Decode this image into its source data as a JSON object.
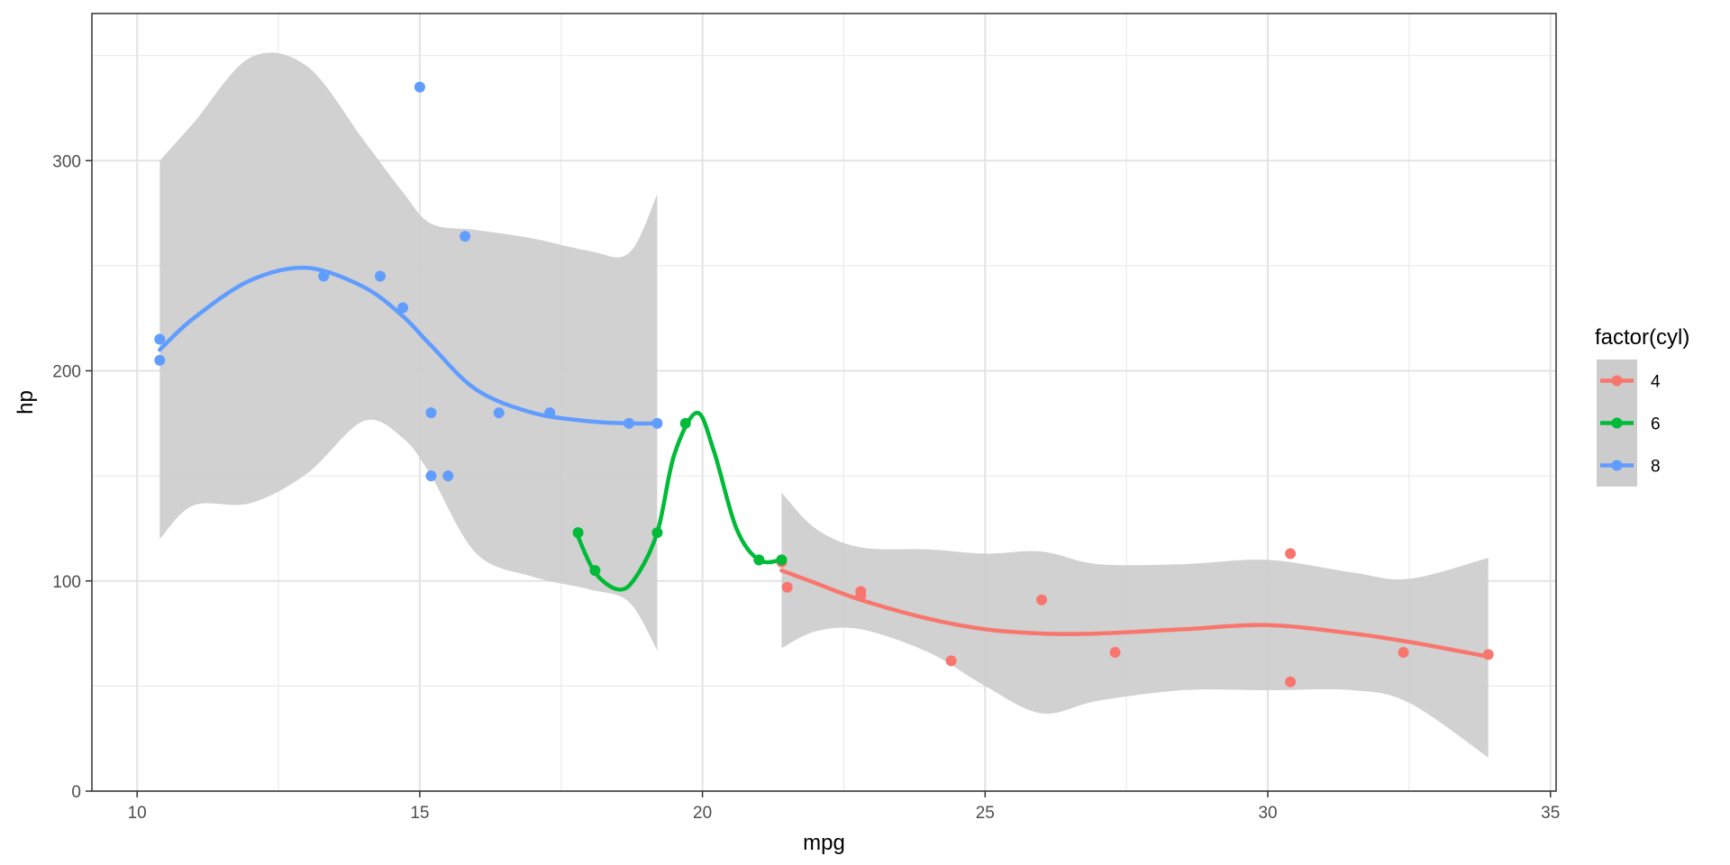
{
  "chart_data": {
    "type": "scatter",
    "xlabel": "mpg",
    "ylabel": "hp",
    "xlim": [
      9.2,
      35.1
    ],
    "ylim": [
      0,
      370
    ],
    "x_ticks": [
      10,
      15,
      20,
      25,
      30,
      35
    ],
    "y_ticks": [
      0,
      100,
      200,
      300
    ],
    "grid": true,
    "theme": "bw",
    "legend": {
      "title": "factor(cyl)",
      "position": "right"
    },
    "ribbon_color": "#cccccc",
    "series": [
      {
        "name": "4",
        "color": "#f8766d",
        "points": [
          {
            "x": 22.8,
            "y": 93
          },
          {
            "x": 24.4,
            "y": 62
          },
          {
            "x": 22.8,
            "y": 95
          },
          {
            "x": 32.4,
            "y": 66
          },
          {
            "x": 30.4,
            "y": 52
          },
          {
            "x": 33.9,
            "y": 65
          },
          {
            "x": 21.5,
            "y": 97
          },
          {
            "x": 27.3,
            "y": 66
          },
          {
            "x": 26.0,
            "y": 91
          },
          {
            "x": 30.4,
            "y": 113
          },
          {
            "x": 21.4,
            "y": 109
          }
        ],
        "smooth": [
          {
            "x": 21.4,
            "y": 105,
            "lo": 68,
            "hi": 142
          },
          {
            "x": 22.0,
            "y": 99,
            "lo": 76,
            "hi": 125
          },
          {
            "x": 22.8,
            "y": 91,
            "lo": 77,
            "hi": 116
          },
          {
            "x": 24.0,
            "y": 82,
            "lo": 66,
            "hi": 115
          },
          {
            "x": 25.0,
            "y": 77,
            "lo": 50,
            "hi": 113
          },
          {
            "x": 26.0,
            "y": 75,
            "lo": 37,
            "hi": 114
          },
          {
            "x": 27.0,
            "y": 75,
            "lo": 43,
            "hi": 108
          },
          {
            "x": 28.5,
            "y": 77,
            "lo": 48,
            "hi": 108
          },
          {
            "x": 30.0,
            "y": 79,
            "lo": 48,
            "hi": 110
          },
          {
            "x": 31.5,
            "y": 75,
            "lo": 48,
            "hi": 104
          },
          {
            "x": 32.5,
            "y": 71,
            "lo": 42,
            "hi": 101
          },
          {
            "x": 33.9,
            "y": 64,
            "lo": 16,
            "hi": 111
          }
        ]
      },
      {
        "name": "6",
        "color": "#00ba38",
        "points": [
          {
            "x": 21.0,
            "y": 110
          },
          {
            "x": 21.0,
            "y": 110
          },
          {
            "x": 21.4,
            "y": 110
          },
          {
            "x": 18.1,
            "y": 105
          },
          {
            "x": 19.2,
            "y": 123
          },
          {
            "x": 17.8,
            "y": 123
          },
          {
            "x": 19.7,
            "y": 175
          }
        ],
        "smooth": [
          {
            "x": 17.8,
            "y": 121
          },
          {
            "x": 18.1,
            "y": 104
          },
          {
            "x": 18.5,
            "y": 96
          },
          {
            "x": 18.8,
            "y": 101
          },
          {
            "x": 19.2,
            "y": 123
          },
          {
            "x": 19.5,
            "y": 160
          },
          {
            "x": 19.9,
            "y": 180
          },
          {
            "x": 20.2,
            "y": 162
          },
          {
            "x": 20.6,
            "y": 125
          },
          {
            "x": 21.0,
            "y": 110
          },
          {
            "x": 21.4,
            "y": 110
          }
        ]
      },
      {
        "name": "8",
        "color": "#619cff",
        "points": [
          {
            "x": 18.7,
            "y": 175
          },
          {
            "x": 14.3,
            "y": 245
          },
          {
            "x": 16.4,
            "y": 180
          },
          {
            "x": 17.3,
            "y": 180
          },
          {
            "x": 15.2,
            "y": 180
          },
          {
            "x": 10.4,
            "y": 205
          },
          {
            "x": 10.4,
            "y": 215
          },
          {
            "x": 14.7,
            "y": 230
          },
          {
            "x": 15.5,
            "y": 150
          },
          {
            "x": 15.2,
            "y": 150
          },
          {
            "x": 13.3,
            "y": 245
          },
          {
            "x": 19.2,
            "y": 175
          },
          {
            "x": 15.8,
            "y": 264
          },
          {
            "x": 15.0,
            "y": 335
          }
        ],
        "smooth": [
          {
            "x": 10.4,
            "y": 210,
            "lo": 120,
            "hi": 300
          },
          {
            "x": 11.0,
            "y": 225,
            "lo": 136,
            "hi": 318
          },
          {
            "x": 12.0,
            "y": 243,
            "lo": 137,
            "hi": 349
          },
          {
            "x": 13.0,
            "y": 249,
            "lo": 151,
            "hi": 345
          },
          {
            "x": 14.0,
            "y": 240,
            "lo": 176,
            "hi": 310
          },
          {
            "x": 14.7,
            "y": 226,
            "lo": 168,
            "hi": 285
          },
          {
            "x": 15.2,
            "y": 212,
            "lo": 150,
            "hi": 270
          },
          {
            "x": 16.0,
            "y": 191,
            "lo": 113,
            "hi": 267
          },
          {
            "x": 17.0,
            "y": 180,
            "lo": 102,
            "hi": 263
          },
          {
            "x": 18.0,
            "y": 176,
            "lo": 96,
            "hi": 257
          },
          {
            "x": 18.7,
            "y": 175,
            "lo": 90,
            "hi": 256
          },
          {
            "x": 19.2,
            "y": 175,
            "lo": 67,
            "hi": 284
          }
        ]
      }
    ]
  }
}
